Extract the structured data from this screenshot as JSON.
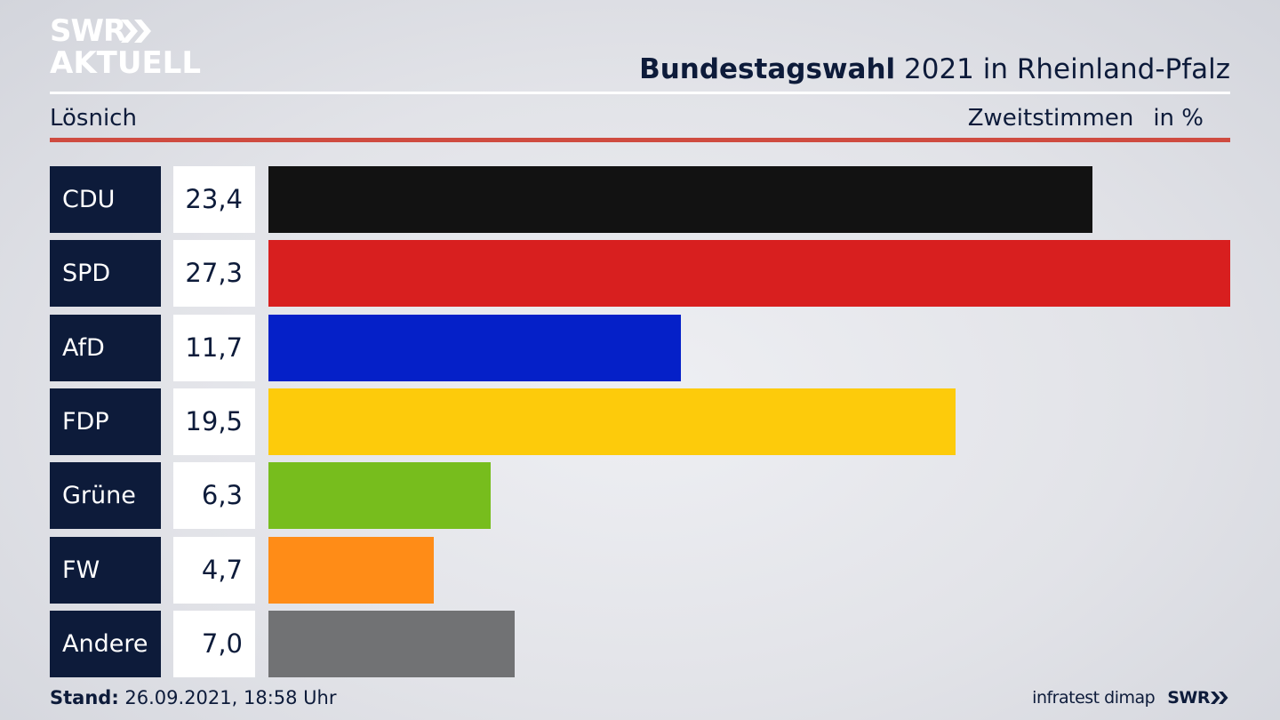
{
  "logo": {
    "line1": "SWR",
    "line2": "AKTUELL",
    "icon": "double-chevron-icon"
  },
  "header": {
    "title_bold": "Bundestagswahl",
    "title_rest": " 2021 in Rheinland-Pfalz",
    "location": "Lösnich",
    "measure": "Zweitstimmen",
    "unit": "in %"
  },
  "footer": {
    "stand_label": "Stand:",
    "stand_value": " 26.09.2021, 18:58 Uhr",
    "source": "infratest dimap",
    "brand": "SWR",
    "brand_icon": "double-chevron-icon"
  },
  "colors": {
    "navy": "#0d1b3a",
    "rule_red": "#cf4b40"
  },
  "chart_data": {
    "type": "bar",
    "orientation": "horizontal",
    "categories": [
      "CDU",
      "SPD",
      "AfD",
      "FDP",
      "Grüne",
      "FW",
      "Andere"
    ],
    "values": [
      23.4,
      27.3,
      11.7,
      19.5,
      6.3,
      4.7,
      7.0
    ],
    "value_labels": [
      "23,4",
      "27,3",
      "11,7",
      "19,5",
      "6,3",
      "4,7",
      "7,0"
    ],
    "colors": [
      "#121212",
      "#d81f1f",
      "#0520c8",
      "#fdcb0b",
      "#77bd1d",
      "#ff8c17",
      "#717274"
    ],
    "xlim": [
      0,
      27.3
    ],
    "grid": false,
    "legend": "none"
  }
}
